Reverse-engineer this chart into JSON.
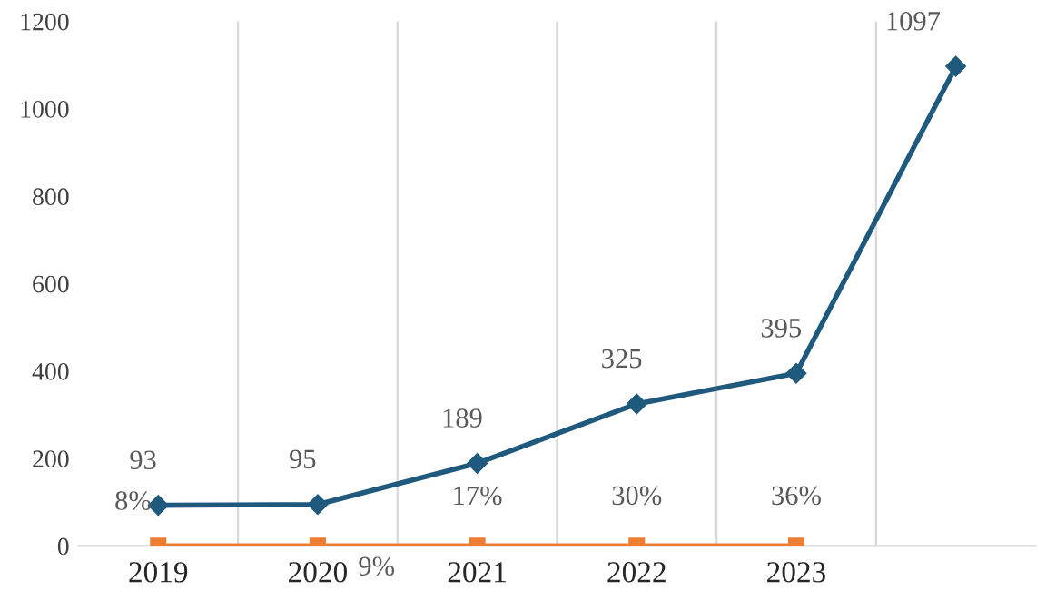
{
  "chart_data": {
    "type": "line",
    "categories": [
      "2019",
      "2020",
      "2021",
      "2022",
      "2023",
      null
    ],
    "series": [
      {
        "color": "#1f5a7e",
        "values": [
          93,
          95,
          189,
          325,
          395,
          1097
        ],
        "marker": "diamond",
        "data_labels": true
      },
      {
        "color": "#ed7d31",
        "values": [
          0.08,
          0.09,
          0.17,
          0.3,
          0.36,
          null
        ],
        "marker": "square",
        "value_labels": [
          "8%",
          "9%",
          "17%",
          "30%",
          "36%",
          null
        ]
      }
    ],
    "ylim": [
      0,
      1200
    ],
    "yticks": [
      0,
      200,
      400,
      600,
      800,
      1000,
      1200
    ],
    "grid": "x",
    "legend": false,
    "line_style": "solid"
  }
}
